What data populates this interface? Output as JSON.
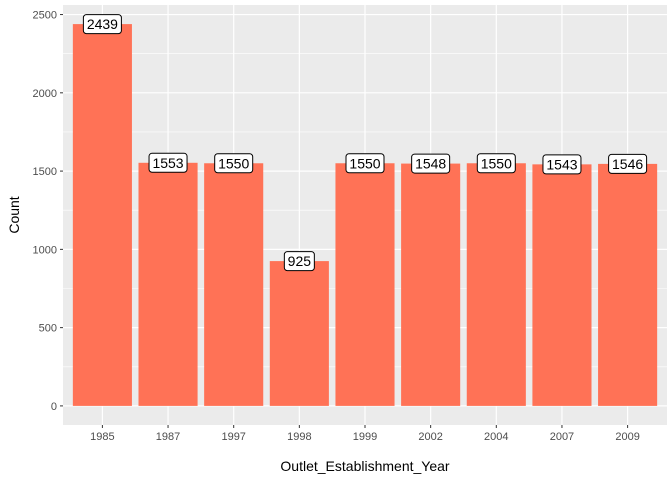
{
  "chart_data": {
    "type": "bar",
    "categories": [
      "1985",
      "1987",
      "1997",
      "1998",
      "1999",
      "2002",
      "2004",
      "2007",
      "2009"
    ],
    "values": [
      2439,
      1553,
      1550,
      925,
      1550,
      1548,
      1550,
      1543,
      1546
    ],
    "data_labels": [
      "2439",
      "1553",
      "1550",
      "925",
      "1550",
      "1548",
      "1550",
      "1543",
      "1546"
    ],
    "xlabel": "Outlet_Establishment_Year",
    "ylabel": "Count",
    "ylim": [
      -122,
      2561
    ],
    "yticks": [
      0,
      500,
      1000,
      1500,
      2000,
      2500
    ],
    "ytick_labels": [
      "0",
      "500",
      "1000",
      "1500",
      "2000",
      "2500"
    ],
    "grid": true,
    "legend": "none",
    "colors": {
      "bar": "#FF7256",
      "panel": "#EBEBEB",
      "grid": "#FFFFFF",
      "label_fill": "#FFFFFF",
      "label_border": "#000000"
    }
  }
}
